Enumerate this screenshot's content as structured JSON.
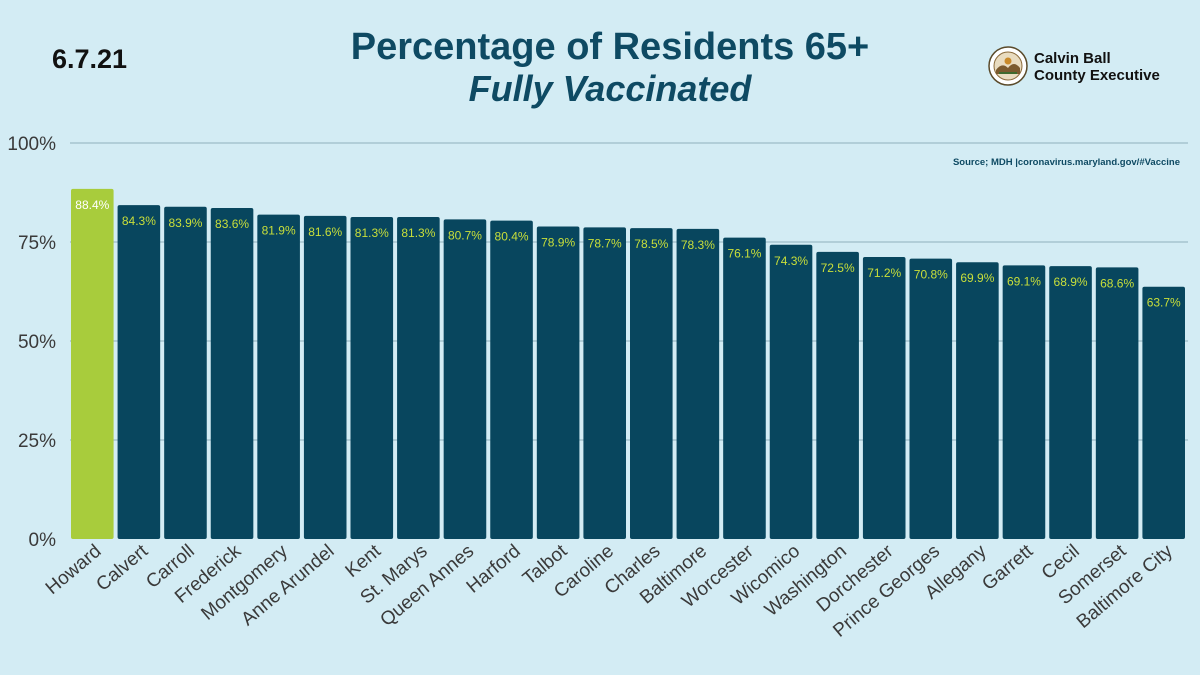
{
  "header": {
    "date": "6.7.21",
    "title_line1": "Percentage of Residents 65+",
    "title_line2": "Fully Vaccinated",
    "brand_line1": "Calvin Ball",
    "brand_line2": "County Executive",
    "source": "Source; MDH |coronavirus.maryland.gov/#Vaccine"
  },
  "colors": {
    "bar": "#08465e",
    "highlight": "#a8cc3c",
    "label": "#c9df3a",
    "highlight_label": "#ffffff",
    "axis_text": "#3a3a3a",
    "grid": "#8fb0bc",
    "background": "#d3ecf4"
  },
  "chart_data": {
    "type": "bar",
    "title": "Percentage of Residents 65+ Fully Vaccinated",
    "xlabel": "",
    "ylabel": "",
    "ylim": [
      0,
      100
    ],
    "yticks": [
      0,
      25,
      50,
      75,
      100
    ],
    "ytick_labels": [
      "0%",
      "25%",
      "50%",
      "75%",
      "100%"
    ],
    "categories": [
      "Howard",
      "Calvert",
      "Carroll",
      "Frederick",
      "Montgomery",
      "Anne Arundel",
      "Kent",
      "St. Marys",
      "Queen Annes",
      "Harford",
      "Talbot",
      "Caroline",
      "Charles",
      "Baltimore",
      "Worcester",
      "Wicomico",
      "Washington",
      "Dorchester",
      "Prince Georges",
      "Allegany",
      "Garrett",
      "Cecil",
      "Somerset",
      "Baltimore City"
    ],
    "values": [
      88.4,
      84.3,
      83.9,
      83.6,
      81.9,
      81.6,
      81.3,
      81.3,
      80.7,
      80.4,
      78.9,
      78.7,
      78.5,
      78.3,
      76.1,
      74.3,
      72.5,
      71.2,
      70.8,
      69.9,
      69.1,
      68.9,
      68.6,
      63.7
    ],
    "value_labels": [
      "88.4%",
      "84.3%",
      "83.9%",
      "83.6%",
      "81.9%",
      "81.6%",
      "81.3%",
      "81.3%",
      "80.7%",
      "80.4%",
      "78.9%",
      "78.7%",
      "78.5%",
      "78.3%",
      "76.1%",
      "74.3%",
      "72.5%",
      "71.2%",
      "70.8%",
      "69.9%",
      "69.1%",
      "68.9%",
      "68.6%",
      "63.7%"
    ],
    "highlight_category": "Howard",
    "grid": true,
    "legend": "none"
  }
}
